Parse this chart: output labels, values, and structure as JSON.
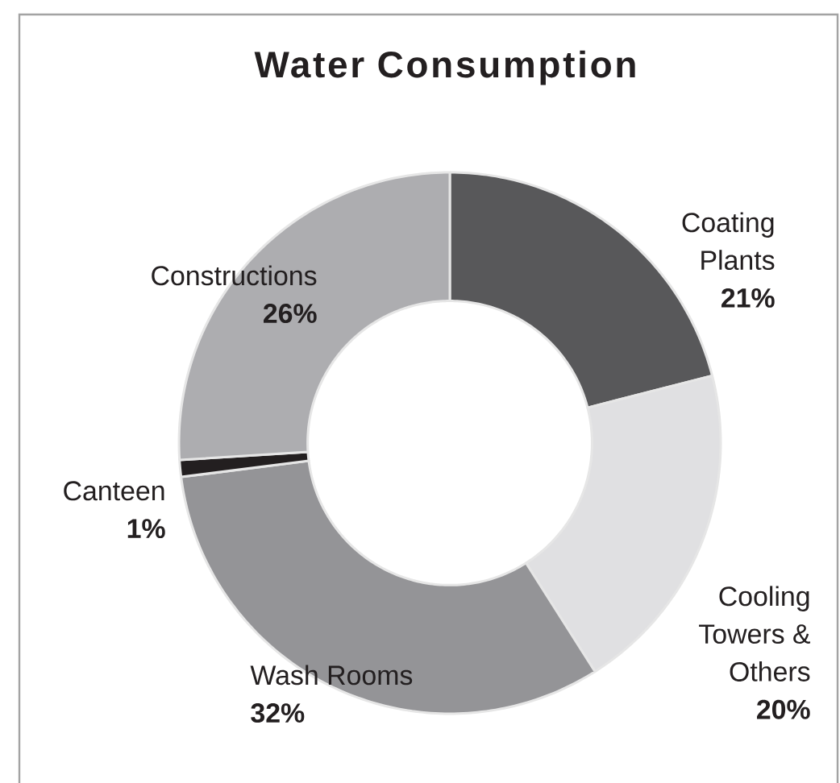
{
  "chart_data": {
    "type": "donut",
    "title": "Water Consumption",
    "categories": [
      "Coating Plants",
      "Cooling Towers & Others",
      "Wash Rooms",
      "Canteen",
      "Constructions"
    ],
    "values": [
      21,
      20,
      32,
      1,
      26
    ],
    "colors": [
      "#58585a",
      "#e0e0e2",
      "#949497",
      "#231f20",
      "#adadb0"
    ],
    "value_labels": [
      "21%",
      "20%",
      "32%",
      "1%",
      "26%"
    ]
  }
}
